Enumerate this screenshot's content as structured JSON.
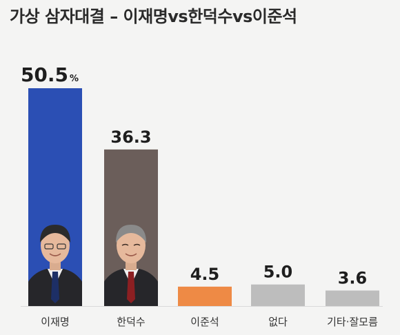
{
  "title": "가상 삼자대결 – 이재명vs한덕수vs이준석",
  "chart_data": {
    "type": "bar",
    "categories": [
      "이재명",
      "한덕수",
      "이준석",
      "없다",
      "기타·잘모름"
    ],
    "values": [
      50.5,
      36.3,
      4.5,
      5.0,
      3.6
    ],
    "value_labels": [
      "50.5",
      "36.3",
      "4.5",
      "5.0",
      "3.6"
    ],
    "unit": "%",
    "colors": [
      "#2b4fb4",
      "#6b5e5a",
      "#ee8a45",
      "#bdbdbd",
      "#bdbdbd"
    ],
    "photos": [
      "portrait",
      "portrait",
      null,
      null,
      null
    ],
    "ylim": [
      0,
      50.5
    ],
    "grid": false,
    "legend": "none"
  }
}
